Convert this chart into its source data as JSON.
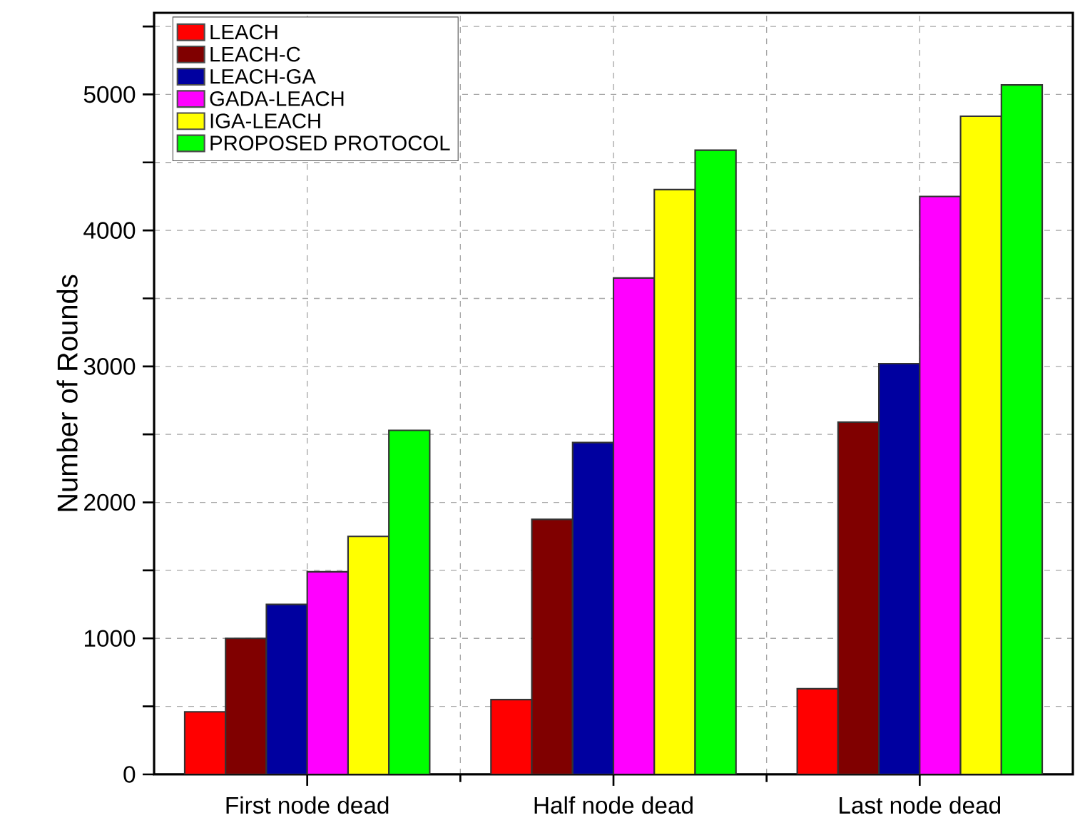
{
  "chart_data": {
    "type": "bar",
    "ylabel": "Number of Rounds",
    "categories": [
      "First node dead",
      "Half node dead",
      "Last node dead"
    ],
    "series": [
      {
        "name": "LEACH",
        "color": "#ff0000",
        "values": [
          460,
          550,
          630
        ]
      },
      {
        "name": "LEACH-C",
        "color": "#800000",
        "values": [
          1000,
          1875,
          2590
        ]
      },
      {
        "name": "LEACH-GA",
        "color": "#0000a0",
        "values": [
          1250,
          2440,
          3020
        ]
      },
      {
        "name": "GADA-LEACH",
        "color": "#ff00ff",
        "values": [
          1490,
          3650,
          4250
        ]
      },
      {
        "name": "IGA-LEACH",
        "color": "#ffff00",
        "values": [
          1750,
          4300,
          4840
        ]
      },
      {
        "name": "PROPOSED PROTOCOL",
        "color": "#00ff00",
        "values": [
          2530,
          4590,
          5070
        ]
      }
    ],
    "ylim": [
      0,
      5600
    ],
    "yticks": [
      0,
      {
        "value": 500,
        "label": null
      },
      1000,
      {
        "value": 1500,
        "label": null
      },
      2000,
      {
        "value": 2500,
        "label": null
      },
      3000,
      {
        "value": 3500,
        "label": null
      },
      4000,
      {
        "value": 4500,
        "label": null
      },
      5000,
      {
        "value": 5500,
        "label": null
      }
    ],
    "grid": true,
    "legend": "top left"
  }
}
